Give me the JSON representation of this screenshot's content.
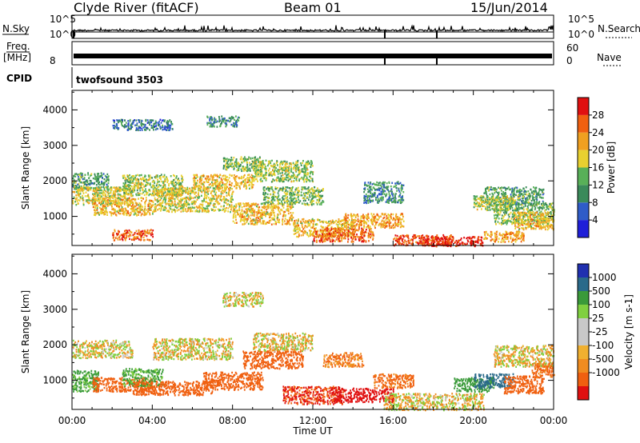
{
  "header": {
    "station": "Clyde River (fitACF)",
    "beam": "Beam 01",
    "date": "15/Jun/2014"
  },
  "strips": {
    "nsky_label": "N.Sky",
    "nsearch_label": "N.Search",
    "noise_ticks": [
      "10^5",
      "10^0"
    ],
    "freq_label": "Freq.",
    "freq_unit": "[MHz]",
    "freq_tick": "8",
    "nave_label": "Nave",
    "nave_ticks": [
      "60",
      "0"
    ],
    "cpid_label": "CPID",
    "cpid_value": "twofsound 3503"
  },
  "colors": {
    "power_scale": [
      "#1f1fd8",
      "#2f5cc8",
      "#3a8a5a",
      "#58b058",
      "#e8d030",
      "#f0a020",
      "#f06010",
      "#e01010"
    ],
    "velocity_scale": [
      "#e01010",
      "#f06010",
      "#f08c20",
      "#f0b030",
      "#c8c8c8",
      "#c8c8c8",
      "#80d040",
      "#3a9a3a",
      "#2a6a8a",
      "#2030b0"
    ]
  },
  "chart_data": [
    {
      "type": "heatmap",
      "panel": "power",
      "xlabel": "",
      "ylabel": "Slant Range [km]",
      "xlim": [
        "00:00",
        "24:00"
      ],
      "ylim": [
        180,
        4550
      ],
      "xticks": [
        "00:00",
        "04:00",
        "08:00",
        "12:00",
        "16:00",
        "20:00",
        "00:00"
      ],
      "yticks": [
        1000,
        2000,
        3000,
        4000
      ],
      "colorbar": {
        "label": "Power [dB]",
        "ticks": [
          4,
          8,
          12,
          16,
          20,
          24,
          28
        ],
        "range": [
          0,
          32
        ]
      },
      "blobs": [
        {
          "t": 0.8,
          "r": 2000,
          "dt": 1.0,
          "dr": 250,
          "v": 12
        },
        {
          "t": 1.5,
          "r": 1600,
          "dt": 1.5,
          "dr": 250,
          "v": 18
        },
        {
          "t": 2.5,
          "r": 1300,
          "dt": 1.5,
          "dr": 250,
          "v": 20
        },
        {
          "t": 3.0,
          "r": 500,
          "dt": 1.0,
          "dr": 150,
          "v": 26
        },
        {
          "t": 4.0,
          "r": 1900,
          "dt": 1.5,
          "dr": 300,
          "v": 16
        },
        {
          "t": 3.5,
          "r": 3600,
          "dt": 1.5,
          "dr": 150,
          "v": 8
        },
        {
          "t": 6.0,
          "r": 1500,
          "dt": 2.0,
          "dr": 350,
          "v": 18
        },
        {
          "t": 7.5,
          "r": 2000,
          "dt": 1.5,
          "dr": 200,
          "v": 20
        },
        {
          "t": 8.5,
          "r": 2500,
          "dt": 1.0,
          "dr": 200,
          "v": 14
        },
        {
          "t": 7.5,
          "r": 3700,
          "dt": 0.8,
          "dr": 150,
          "v": 10
        },
        {
          "t": 9.5,
          "r": 1100,
          "dt": 1.5,
          "dr": 300,
          "v": 20
        },
        {
          "t": 10.5,
          "r": 2300,
          "dt": 1.5,
          "dr": 300,
          "v": 16
        },
        {
          "t": 11.0,
          "r": 1600,
          "dt": 1.5,
          "dr": 250,
          "v": 14
        },
        {
          "t": 12.5,
          "r": 700,
          "dt": 1.5,
          "dr": 250,
          "v": 20
        },
        {
          "t": 13.5,
          "r": 500,
          "dt": 1.5,
          "dr": 200,
          "v": 26
        },
        {
          "t": 15.0,
          "r": 900,
          "dt": 1.5,
          "dr": 200,
          "v": 22
        },
        {
          "t": 15.5,
          "r": 1700,
          "dt": 1.0,
          "dr": 300,
          "v": 10
        },
        {
          "t": 17.5,
          "r": 350,
          "dt": 1.5,
          "dr": 150,
          "v": 28
        },
        {
          "t": 19.0,
          "r": 300,
          "dt": 1.5,
          "dr": 150,
          "v": 30
        },
        {
          "t": 21.5,
          "r": 450,
          "dt": 1.0,
          "dr": 150,
          "v": 22
        },
        {
          "t": 22.5,
          "r": 1100,
          "dt": 1.5,
          "dr": 300,
          "v": 14
        },
        {
          "t": 22.0,
          "r": 1600,
          "dt": 1.5,
          "dr": 250,
          "v": 12
        },
        {
          "t": 21.0,
          "r": 1400,
          "dt": 1.0,
          "dr": 200,
          "v": 16
        },
        {
          "t": 23.0,
          "r": 900,
          "dt": 1.0,
          "dr": 250,
          "v": 20
        }
      ]
    },
    {
      "type": "heatmap",
      "panel": "velocity",
      "xlabel": "Time UT",
      "ylabel": "Slant Range [km]",
      "xlim": [
        "00:00",
        "24:00"
      ],
      "ylim": [
        180,
        4550
      ],
      "xticks": [
        "00:00",
        "04:00",
        "08:00",
        "12:00",
        "16:00",
        "20:00",
        "00:00"
      ],
      "yticks": [
        1000,
        2000,
        3000,
        4000
      ],
      "colorbar": {
        "label": "Velocity [m s-1]",
        "ticks": [
          1000,
          500,
          100,
          25,
          -25,
          -100,
          -500,
          -1000
        ]
      },
      "blobs": [
        {
          "t": 1.5,
          "r": 1900,
          "dt": 1.5,
          "dr": 250,
          "v": 0
        },
        {
          "t": 0.5,
          "r": 1000,
          "dt": 0.8,
          "dr": 300,
          "v": 150
        },
        {
          "t": 2.5,
          "r": 900,
          "dt": 1.5,
          "dr": 200,
          "v": -200
        },
        {
          "t": 3.5,
          "r": 1100,
          "dt": 1.0,
          "dr": 250,
          "v": 150
        },
        {
          "t": 5.0,
          "r": 800,
          "dt": 2.0,
          "dr": 200,
          "v": -400
        },
        {
          "t": 6.0,
          "r": 1900,
          "dt": 2.0,
          "dr": 300,
          "v": 0
        },
        {
          "t": 8.0,
          "r": 1000,
          "dt": 1.5,
          "dr": 250,
          "v": -300
        },
        {
          "t": 8.5,
          "r": 3300,
          "dt": 1.0,
          "dr": 200,
          "v": 0
        },
        {
          "t": 10.0,
          "r": 1600,
          "dt": 1.5,
          "dr": 250,
          "v": -200
        },
        {
          "t": 10.5,
          "r": 2100,
          "dt": 1.5,
          "dr": 250,
          "v": 0
        },
        {
          "t": 12.0,
          "r": 600,
          "dt": 1.5,
          "dr": 250,
          "v": -500
        },
        {
          "t": 13.5,
          "r": 1600,
          "dt": 1.0,
          "dr": 200,
          "v": -100
        },
        {
          "t": 14.5,
          "r": 600,
          "dt": 1.5,
          "dr": 200,
          "v": -600
        },
        {
          "t": 16.0,
          "r": 1000,
          "dt": 1.0,
          "dr": 200,
          "v": -150
        },
        {
          "t": 18.0,
          "r": 400,
          "dt": 2.5,
          "dr": 250,
          "v": 0
        },
        {
          "t": 20.0,
          "r": 900,
          "dt": 1.0,
          "dr": 200,
          "v": 300
        },
        {
          "t": 21.0,
          "r": 1000,
          "dt": 1.0,
          "dr": 200,
          "v": 600
        },
        {
          "t": 22.5,
          "r": 900,
          "dt": 1.0,
          "dr": 250,
          "v": -300
        },
        {
          "t": 22.5,
          "r": 1700,
          "dt": 1.5,
          "dr": 300,
          "v": 0
        },
        {
          "t": 23.5,
          "r": 1300,
          "dt": 0.6,
          "dr": 200,
          "v": -150
        }
      ]
    }
  ]
}
